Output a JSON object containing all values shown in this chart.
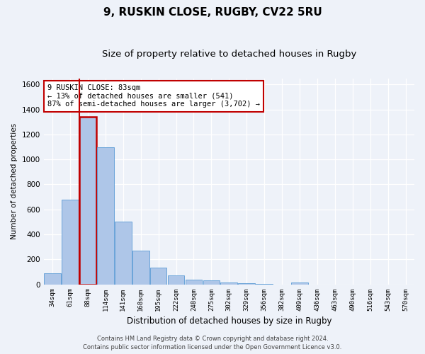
{
  "title1": "9, RUSKIN CLOSE, RUGBY, CV22 5RU",
  "title2": "Size of property relative to detached houses in Rugby",
  "xlabel": "Distribution of detached houses by size in Rugby",
  "ylabel": "Number of detached properties",
  "categories": [
    "34sqm",
    "61sqm",
    "88sqm",
    "114sqm",
    "141sqm",
    "168sqm",
    "195sqm",
    "222sqm",
    "248sqm",
    "275sqm",
    "302sqm",
    "329sqm",
    "356sqm",
    "382sqm",
    "409sqm",
    "436sqm",
    "463sqm",
    "490sqm",
    "516sqm",
    "543sqm",
    "570sqm"
  ],
  "values": [
    90,
    680,
    1340,
    1100,
    500,
    270,
    135,
    70,
    35,
    30,
    15,
    10,
    5,
    0,
    15,
    0,
    0,
    0,
    0,
    0,
    0
  ],
  "bar_color": "#aec6e8",
  "bar_edge_color": "#5b9bd5",
  "highlight_bar_index": 2,
  "highlight_color": "#c00000",
  "ylim": [
    0,
    1650
  ],
  "yticks": [
    0,
    200,
    400,
    600,
    800,
    1000,
    1200,
    1400,
    1600
  ],
  "annotation_text": "9 RUSKIN CLOSE: 83sqm\n← 13% of detached houses are smaller (541)\n87% of semi-detached houses are larger (3,702) →",
  "annotation_box_color": "#c00000",
  "footer_text": "Contains HM Land Registry data © Crown copyright and database right 2024.\nContains public sector information licensed under the Open Government Licence v3.0.",
  "bg_color": "#eef2f9",
  "grid_color": "#ffffff",
  "title1_fontsize": 11,
  "title2_fontsize": 9.5
}
